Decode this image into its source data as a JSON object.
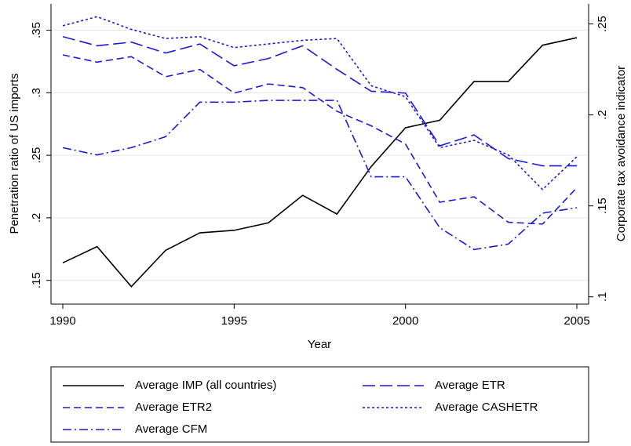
{
  "chart_data": {
    "type": "line",
    "x_label": "Year",
    "y_label": "Penetration ratio of US imports",
    "y2_label": "Corporate tax avoidance indicator",
    "x": [
      1990,
      1991,
      1992,
      1993,
      1994,
      1995,
      1996,
      1997,
      1998,
      1999,
      2000,
      2001,
      2002,
      2003,
      2004,
      2005
    ],
    "xlim": [
      1990,
      2005
    ],
    "xticks": [
      1990,
      1995,
      2000,
      2005
    ],
    "ylim": [
      0.131,
      0.371
    ],
    "yticks": [
      {
        "value": 0.15,
        "label": ".15"
      },
      {
        "value": 0.2,
        "label": ".2"
      },
      {
        "value": 0.25,
        "label": ".25"
      },
      {
        "value": 0.3,
        "label": ".3"
      },
      {
        "value": 0.35,
        "label": ".35"
      }
    ],
    "y2lim": [
      0.096,
      0.261
    ],
    "y2ticks": [
      {
        "value": 0.1,
        "label": ".1"
      },
      {
        "value": 0.15,
        "label": ".15"
      },
      {
        "value": 0.2,
        "label": ".2"
      },
      {
        "value": 0.25,
        "label": ".25"
      }
    ],
    "grid": true,
    "series": [
      {
        "name": "Average IMP (all countries)",
        "color": "#000000",
        "dash": "none",
        "values": [
          0.164,
          0.177,
          0.145,
          0.174,
          0.188,
          0.19,
          0.196,
          0.218,
          0.203,
          0.241,
          0.272,
          0.278,
          0.309,
          0.309,
          0.338,
          0.344
        ]
      },
      {
        "name": "Average ETR",
        "color": "#1a1ad6",
        "dash": "16 6",
        "axis": "y2",
        "values": [
          0.243,
          0.238,
          0.24,
          0.234,
          0.239,
          0.227,
          0.231,
          0.238,
          0.225,
          0.213,
          0.212,
          0.183,
          0.189,
          0.176,
          0.172,
          0.172
        ]
      },
      {
        "name": "Average ETR2",
        "color": "#1a1ad6",
        "dash": "9 5",
        "axis": "y2",
        "values": [
          0.233,
          0.229,
          0.232,
          0.221,
          0.225,
          0.212,
          0.217,
          0.215,
          0.202,
          0.194,
          0.184,
          0.152,
          0.155,
          0.141,
          0.14,
          0.16
        ]
      },
      {
        "name": "Average CASHETR",
        "color": "#1a1ad6",
        "dash": "3 3",
        "axis": "y2",
        "values": [
          0.249,
          0.254,
          0.247,
          0.242,
          0.243,
          0.237,
          0.239,
          0.241,
          0.242,
          0.216,
          0.21,
          0.182,
          0.186,
          0.178,
          0.159,
          0.177
        ]
      },
      {
        "name": "Average CFM",
        "color": "#1a1ad6",
        "dash": "11 4 2 4",
        "axis": "y2",
        "values": [
          0.182,
          0.178,
          0.182,
          0.188,
          0.207,
          0.207,
          0.208,
          0.208,
          0.208,
          0.166,
          0.166,
          0.138,
          0.126,
          0.129,
          0.146,
          0.149
        ]
      }
    ],
    "legend": "bottom"
  }
}
